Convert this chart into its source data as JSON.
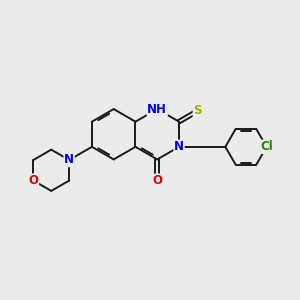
{
  "bg_color": "#ebebeb",
  "bond_color": "#1a1a1a",
  "bond_lw": 1.4,
  "doff": 0.016,
  "atom_colors": {
    "N": "#0000ee",
    "O": "#dd0000",
    "S": "#aaaa00",
    "Cl": "#228800",
    "C": "#1a1a1a"
  },
  "fs": 8.5,
  "bl": 0.22
}
